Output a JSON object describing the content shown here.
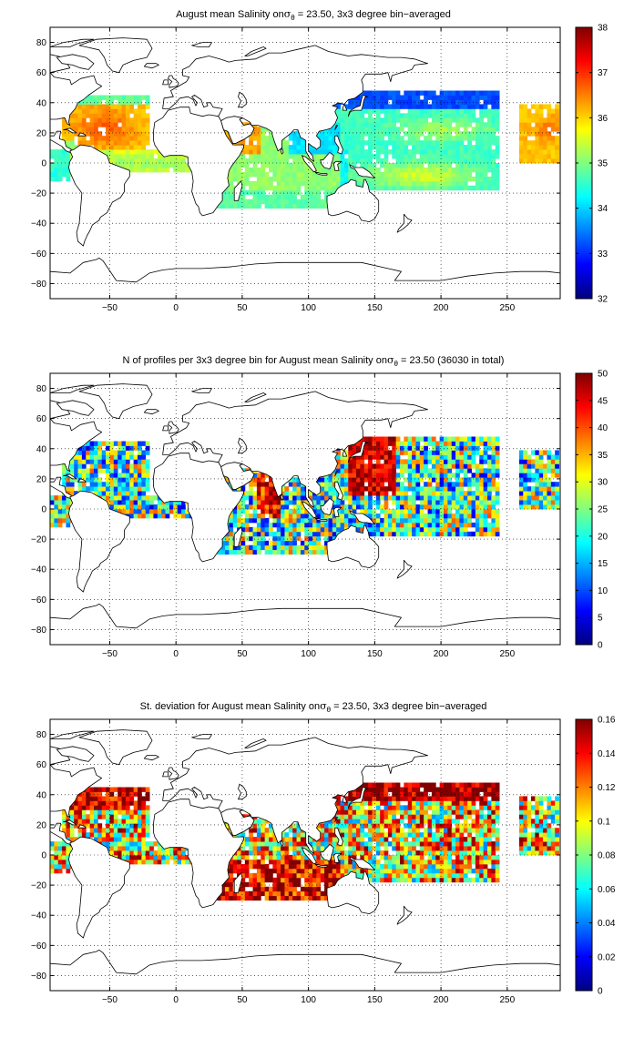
{
  "chart_data": [
    {
      "type": "heatmap",
      "title_pre": "August mean Salinity on",
      "title_sym": "σ",
      "title_sub": "θ",
      "title_post": " = 23.50, 3x3 degree bin−averaged",
      "xlim": [
        -95,
        290
      ],
      "ylim": [
        -90,
        90
      ],
      "xticks": [
        -50,
        0,
        50,
        100,
        150,
        200,
        250
      ],
      "yticks": [
        -80,
        -60,
        -40,
        -20,
        0,
        20,
        40,
        60,
        80
      ],
      "clim": [
        32,
        38
      ],
      "cticks": [
        32,
        33,
        34,
        35,
        36,
        37,
        38
      ],
      "grid": true,
      "colormap": "jet"
    },
    {
      "type": "heatmap",
      "title_pre": "N of profiles per 3x3 degree bin for August mean Salinity on",
      "title_sym": "σ",
      "title_sub": "θ",
      "title_post": " = 23.50 (36030 in total)",
      "xlim": [
        -95,
        290
      ],
      "ylim": [
        -90,
        90
      ],
      "xticks": [
        -50,
        0,
        50,
        100,
        150,
        200,
        250
      ],
      "yticks": [
        -80,
        -60,
        -40,
        -20,
        0,
        20,
        40,
        60,
        80
      ],
      "clim": [
        0,
        50
      ],
      "cticks": [
        0,
        5,
        10,
        15,
        20,
        25,
        30,
        35,
        40,
        45,
        50
      ],
      "grid": true,
      "colormap": "jet"
    },
    {
      "type": "heatmap",
      "title_pre": "St. deviation for August mean Salinity on",
      "title_sym": "σ",
      "title_sub": "θ",
      "title_post": " = 23.50, 3x3 degree bin−averaged",
      "xlim": [
        -95,
        290
      ],
      "ylim": [
        -90,
        90
      ],
      "xticks": [
        -50,
        0,
        50,
        100,
        150,
        200,
        250
      ],
      "yticks": [
        -80,
        -60,
        -40,
        -20,
        0,
        20,
        40,
        60,
        80
      ],
      "clim": [
        0,
        0.16
      ],
      "cticks": [
        0,
        0.02,
        0.04,
        0.06,
        0.08,
        0.1,
        0.12,
        0.14,
        0.16
      ],
      "grid": true,
      "colormap": "jet"
    }
  ]
}
